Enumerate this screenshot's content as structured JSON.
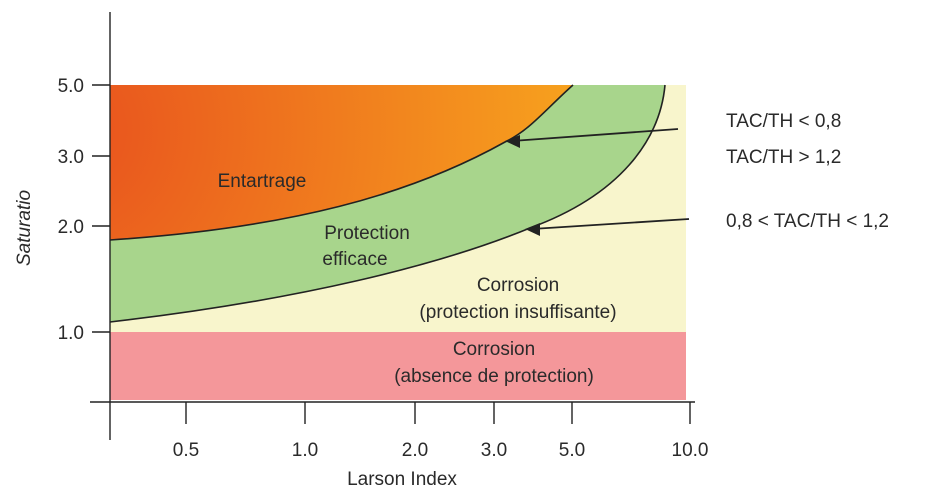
{
  "axes": {
    "x_label": "Larson Index",
    "y_label": "Saturatio",
    "x_ticks": [
      "0.5",
      "1.0",
      "2.0",
      "3.0",
      "5.0",
      "10.0"
    ],
    "y_ticks": [
      "5.0",
      "3.0",
      "2.0",
      "1.0"
    ]
  },
  "regions": {
    "entartrage": "Entartrage",
    "protection_line1": "Protection",
    "protection_line2": "efficace",
    "corrosion_insuff_line1": "Corrosion",
    "corrosion_insuff_line2": "(protection insuffisante)",
    "corrosion_absence_line1": "Corrosion",
    "corrosion_absence_line2": "(absence de protection)"
  },
  "annotations": {
    "upper_line1": "TAC/TH < 0,8",
    "upper_line2": "TAC/TH > 1,2",
    "lower": "0,8 < TAC/TH < 1,2"
  },
  "colors": {
    "scaling_dark": "#e8501e",
    "scaling_light": "#f7a21e",
    "protection_green": "#a8d58c",
    "insufficient_cream": "#f8f5cc",
    "absence_pink": "#f4979a"
  }
}
